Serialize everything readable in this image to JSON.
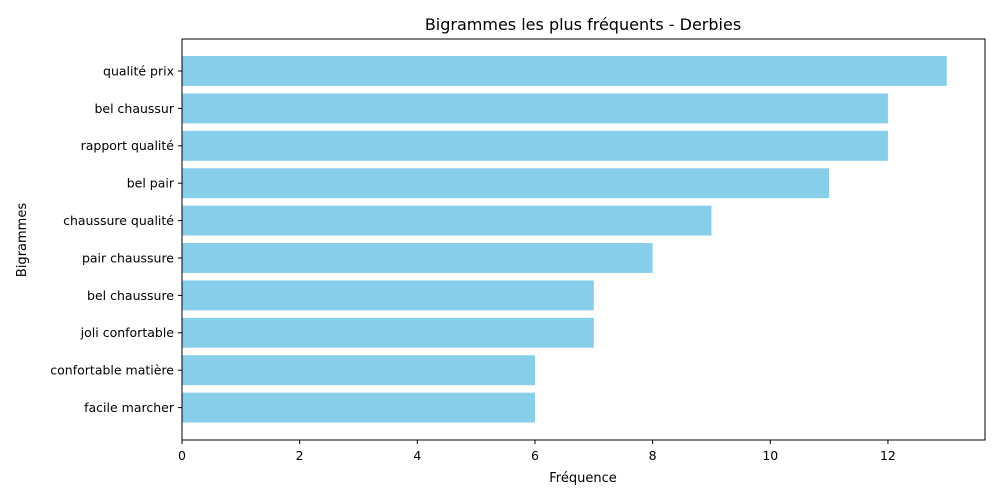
{
  "chart_data": {
    "type": "bar",
    "orientation": "horizontal",
    "title": "Bigrammes les plus fréquents - Derbies",
    "xlabel": "Fréquence",
    "ylabel": "Bigrammes",
    "categories": [
      "qualité prix",
      "bel chaussur",
      "rapport qualité",
      "bel pair",
      "chaussure qualité",
      "pair chaussure",
      "bel chaussure",
      "joli confortable",
      "confortable matière",
      "facile marcher"
    ],
    "values": [
      13,
      12,
      12,
      11,
      9,
      8,
      7,
      7,
      6,
      6
    ],
    "xlim": [
      0,
      13.65
    ],
    "xticks": [
      "0",
      "2",
      "4",
      "6",
      "8",
      "10",
      "12"
    ],
    "grid": false,
    "bar_color": "#87CEEB"
  }
}
